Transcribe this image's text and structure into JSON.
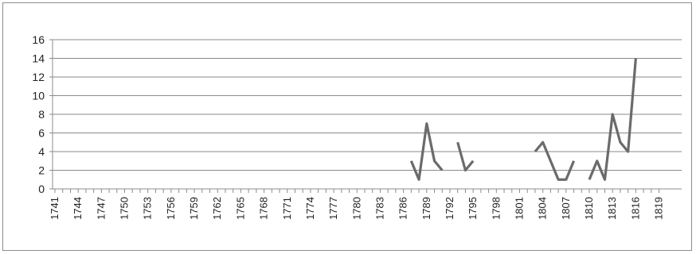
{
  "chart_data": {
    "type": "line",
    "title": "",
    "xlabel": "",
    "ylabel": "",
    "x_range": [
      1741,
      1819
    ],
    "x_tick_step": 1,
    "x_label_values": [
      1741,
      1744,
      1747,
      1750,
      1753,
      1756,
      1759,
      1762,
      1765,
      1768,
      1771,
      1774,
      1777,
      1780,
      1783,
      1786,
      1789,
      1792,
      1795,
      1798,
      1801,
      1804,
      1807,
      1810,
      1813,
      1816,
      1819
    ],
    "ylim": [
      0,
      16
    ],
    "y_ticks": [
      0,
      2,
      4,
      6,
      8,
      10,
      12,
      14,
      16
    ],
    "grid": "horizontal",
    "legend": "none",
    "line_color": "#6b6b6b",
    "series": [
      {
        "segments": [
          [
            [
              1787,
              3
            ],
            [
              1788,
              1
            ],
            [
              1789,
              7
            ],
            [
              1790,
              3
            ],
            [
              1791,
              2
            ]
          ],
          [
            [
              1793,
              5
            ],
            [
              1794,
              2
            ],
            [
              1795,
              3
            ]
          ],
          [
            [
              1803,
              4
            ],
            [
              1804,
              5
            ],
            [
              1805,
              3
            ],
            [
              1806,
              1
            ],
            [
              1807,
              1
            ],
            [
              1808,
              3
            ]
          ],
          [
            [
              1810,
              1
            ],
            [
              1811,
              3
            ],
            [
              1812,
              1
            ],
            [
              1813,
              8
            ],
            [
              1814,
              5
            ],
            [
              1815,
              4
            ],
            [
              1816,
              14
            ]
          ]
        ]
      }
    ]
  }
}
